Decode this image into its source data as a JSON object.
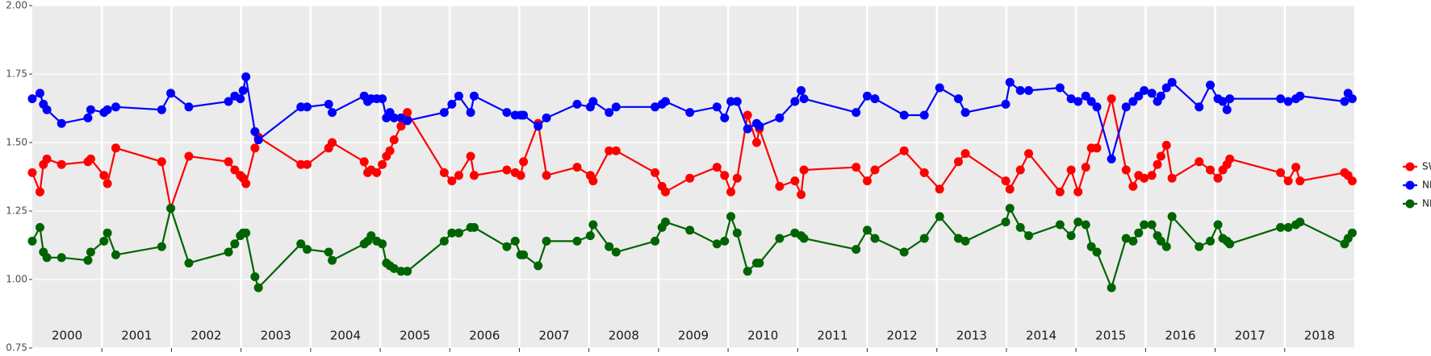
{
  "chart_data": {
    "type": "line",
    "x": [
      2000.0,
      2000.11,
      2000.16,
      2000.21,
      2000.42,
      2000.8,
      2000.84,
      2001.03,
      2001.08,
      2001.2,
      2001.86,
      2001.99,
      2002.25,
      2002.82,
      2002.91,
      2002.99,
      2003.03,
      2003.07,
      2003.2,
      2003.25,
      2003.86,
      2003.95,
      2004.26,
      2004.31,
      2004.77,
      2004.82,
      2004.87,
      2004.95,
      2005.03,
      2005.09,
      2005.14,
      2005.2,
      2005.3,
      2005.39,
      2005.92,
      2006.03,
      2006.13,
      2006.3,
      2006.35,
      2006.82,
      2006.94,
      2007.02,
      2007.06,
      2007.27,
      2007.39,
      2007.83,
      2008.02,
      2008.06,
      2008.29,
      2008.39,
      2008.95,
      2009.05,
      2009.1,
      2009.45,
      2009.84,
      2009.95,
      2010.04,
      2010.13,
      2010.28,
      2010.41,
      2010.45,
      2010.74,
      2010.96,
      2011.05,
      2011.09,
      2011.84,
      2012.0,
      2012.11,
      2012.53,
      2012.82,
      2013.04,
      2013.31,
      2013.41,
      2013.99,
      2014.05,
      2014.2,
      2014.32,
      2014.77,
      2014.93,
      2015.03,
      2015.14,
      2015.22,
      2015.3,
      2015.51,
      2015.72,
      2015.82,
      2015.9,
      2015.98,
      2016.09,
      2016.17,
      2016.22,
      2016.3,
      2016.38,
      2016.77,
      2016.93,
      2017.04,
      2017.11,
      2017.17,
      2017.21,
      2017.94,
      2018.05,
      2018.16,
      2018.22,
      2018.86,
      2018.91,
      2018.97
    ],
    "series": [
      {
        "name": "SWIR",
        "color": "#ff0000",
        "values": [
          1.39,
          1.32,
          1.42,
          1.44,
          1.42,
          1.43,
          1.44,
          1.38,
          1.35,
          1.48,
          1.43,
          1.26,
          1.45,
          1.43,
          1.4,
          1.38,
          1.37,
          1.35,
          1.48,
          1.52,
          1.42,
          1.42,
          1.48,
          1.5,
          1.43,
          1.39,
          1.4,
          1.39,
          1.42,
          1.45,
          1.47,
          1.51,
          1.56,
          1.61,
          1.39,
          1.36,
          1.38,
          1.45,
          1.38,
          1.4,
          1.39,
          1.38,
          1.43,
          1.57,
          1.38,
          1.41,
          1.38,
          1.36,
          1.47,
          1.47,
          1.39,
          1.34,
          1.32,
          1.37,
          1.41,
          1.38,
          1.32,
          1.37,
          1.6,
          1.5,
          1.55,
          1.34,
          1.36,
          1.31,
          1.4,
          1.41,
          1.36,
          1.4,
          1.47,
          1.39,
          1.33,
          1.43,
          1.46,
          1.36,
          1.33,
          1.4,
          1.46,
          1.32,
          1.4,
          1.32,
          1.41,
          1.48,
          1.48,
          1.66,
          1.4,
          1.34,
          1.38,
          1.37,
          1.38,
          1.42,
          1.45,
          1.49,
          1.37,
          1.43,
          1.4,
          1.37,
          1.4,
          1.42,
          1.44,
          1.39,
          1.36,
          1.41,
          1.36,
          1.39,
          1.38,
          1.36
        ]
      },
      {
        "name": "NDVI",
        "color": "#0000ff",
        "values": [
          1.66,
          1.68,
          1.64,
          1.62,
          1.57,
          1.59,
          1.62,
          1.61,
          1.62,
          1.63,
          1.62,
          1.68,
          1.63,
          1.65,
          1.67,
          1.66,
          1.69,
          1.74,
          1.54,
          1.51,
          1.63,
          1.63,
          1.64,
          1.61,
          1.67,
          1.65,
          1.66,
          1.66,
          1.66,
          1.59,
          1.61,
          1.59,
          1.59,
          1.58,
          1.61,
          1.64,
          1.67,
          1.61,
          1.67,
          1.61,
          1.6,
          1.6,
          1.6,
          1.56,
          1.59,
          1.64,
          1.63,
          1.65,
          1.61,
          1.63,
          1.63,
          1.64,
          1.65,
          1.61,
          1.63,
          1.59,
          1.65,
          1.65,
          1.55,
          1.57,
          1.56,
          1.59,
          1.65,
          1.69,
          1.66,
          1.61,
          1.67,
          1.66,
          1.6,
          1.6,
          1.7,
          1.66,
          1.61,
          1.64,
          1.72,
          1.69,
          1.69,
          1.7,
          1.66,
          1.65,
          1.67,
          1.65,
          1.63,
          1.44,
          1.63,
          1.65,
          1.67,
          1.69,
          1.68,
          1.65,
          1.67,
          1.7,
          1.72,
          1.63,
          1.71,
          1.66,
          1.65,
          1.62,
          1.66,
          1.66,
          1.65,
          1.66,
          1.67,
          1.65,
          1.68,
          1.66
        ]
      },
      {
        "name": "NDWI",
        "color": "#006400",
        "values": [
          1.14,
          1.19,
          1.1,
          1.08,
          1.08,
          1.07,
          1.1,
          1.14,
          1.17,
          1.09,
          1.12,
          1.26,
          1.06,
          1.1,
          1.13,
          1.16,
          1.17,
          1.17,
          1.01,
          0.97,
          1.13,
          1.11,
          1.1,
          1.07,
          1.13,
          1.14,
          1.16,
          1.14,
          1.13,
          1.06,
          1.05,
          1.04,
          1.03,
          1.03,
          1.14,
          1.17,
          1.17,
          1.19,
          1.19,
          1.12,
          1.14,
          1.09,
          1.09,
          1.05,
          1.14,
          1.14,
          1.16,
          1.2,
          1.12,
          1.1,
          1.14,
          1.19,
          1.21,
          1.18,
          1.13,
          1.14,
          1.23,
          1.17,
          1.03,
          1.06,
          1.06,
          1.15,
          1.17,
          1.16,
          1.15,
          1.11,
          1.18,
          1.15,
          1.1,
          1.15,
          1.23,
          1.15,
          1.14,
          1.21,
          1.26,
          1.19,
          1.16,
          1.2,
          1.16,
          1.21,
          1.2,
          1.12,
          1.1,
          0.97,
          1.15,
          1.14,
          1.17,
          1.2,
          1.2,
          1.16,
          1.14,
          1.12,
          1.23,
          1.12,
          1.14,
          1.2,
          1.15,
          1.14,
          1.13,
          1.19,
          1.19,
          1.2,
          1.21,
          1.13,
          1.15,
          1.17
        ]
      }
    ],
    "year_labels": [
      "2000",
      "2001",
      "2002",
      "2003",
      "2004",
      "2005",
      "2006",
      "2007",
      "2008",
      "2009",
      "2010",
      "2011",
      "2012",
      "2013",
      "2014",
      "2015",
      "2016",
      "2017",
      "2018"
    ],
    "xlim": [
      2000,
      2019
    ],
    "xticks": [
      2001,
      2002,
      2003,
      2004,
      2005,
      2006,
      2007,
      2008,
      2009,
      2010,
      2011,
      2012,
      2013,
      2014,
      2015,
      2016,
      2017,
      2018
    ],
    "ylim": [
      0.75,
      2.0
    ],
    "yticks": [
      {
        "value": 0.75,
        "label": "0.75"
      },
      {
        "value": 1.0,
        "label": "1.00"
      },
      {
        "value": 1.25,
        "label": "1.25"
      },
      {
        "value": 1.5,
        "label": "1.50"
      },
      {
        "value": 1.75,
        "label": "1.75"
      },
      {
        "value": 2.0,
        "label": "2.00"
      }
    ],
    "grid": true
  }
}
